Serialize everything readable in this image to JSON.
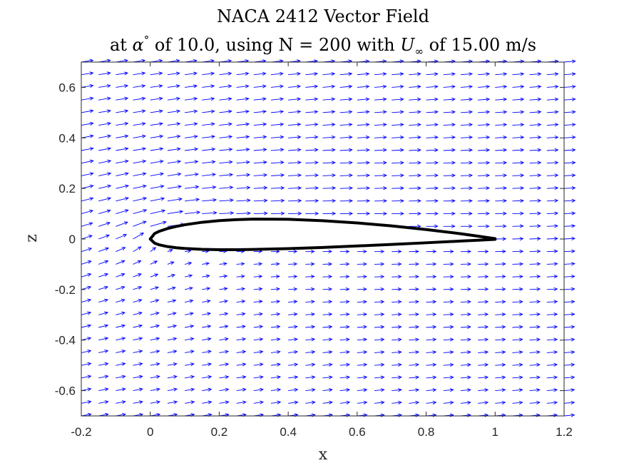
{
  "chart_data": {
    "type": "quiver",
    "title": "NACA 2412 Vector Field",
    "subtitle": {
      "prefix": "at ",
      "alpha_symbol": "α",
      "degree_sup": "°",
      "after_alpha": " of 10.0, using N = 200 with ",
      "u_symbol": "U",
      "u_sub": "∞",
      "suffix": " of 15.00 m/s"
    },
    "xlabel": "x",
    "ylabel": "z",
    "xlim": [
      -0.2,
      1.2
    ],
    "ylim": [
      -0.7,
      0.7
    ],
    "xticks": [
      -0.2,
      0,
      0.2,
      0.4,
      0.6,
      0.8,
      1,
      1.2
    ],
    "xtick_labels": [
      "-0.2",
      "0",
      "0.2",
      "0.4",
      "0.6",
      "0.8",
      "1",
      "1.2"
    ],
    "yticks": [
      -0.6,
      -0.4,
      -0.2,
      0,
      0.2,
      0.4,
      0.6
    ],
    "ytick_labels": [
      "-0.6",
      "-0.4",
      "-0.2",
      "0",
      "0.2",
      "0.4",
      "0.6"
    ],
    "grid": false,
    "vector_color": "#0000ff",
    "airfoil_color": "#000000",
    "parameters": {
      "airfoil": "NACA 2412",
      "alpha_deg": 10.0,
      "panels_N": 200,
      "U_inf_m_s": 15.0
    },
    "vector_grid": {
      "x_start": -0.2,
      "x_step": 0.05,
      "x_count": 29,
      "z_start": -0.7,
      "z_step": 0.05,
      "z_count": 29
    },
    "airfoil_upper": [
      [
        0,
        0
      ],
      [
        0.0125,
        0.0215
      ],
      [
        0.025,
        0.0299
      ],
      [
        0.05,
        0.0413
      ],
      [
        0.075,
        0.0496
      ],
      [
        0.1,
        0.0563
      ],
      [
        0.15,
        0.0661
      ],
      [
        0.2,
        0.0726
      ],
      [
        0.25,
        0.0767
      ],
      [
        0.3,
        0.0788
      ],
      [
        0.4,
        0.078
      ],
      [
        0.5,
        0.0724
      ],
      [
        0.6,
        0.0636
      ],
      [
        0.7,
        0.0518
      ],
      [
        0.8,
        0.0375
      ],
      [
        0.9,
        0.0208
      ],
      [
        0.95,
        0.0114
      ],
      [
        1.0,
        0.0013
      ]
    ],
    "airfoil_lower": [
      [
        0,
        0
      ],
      [
        0.0125,
        -0.0165
      ],
      [
        0.025,
        -0.0227
      ],
      [
        0.05,
        -0.0301
      ],
      [
        0.075,
        -0.0346
      ],
      [
        0.1,
        -0.0375
      ],
      [
        0.15,
        -0.041
      ],
      [
        0.2,
        -0.0423
      ],
      [
        0.25,
        -0.0422
      ],
      [
        0.3,
        -0.0412
      ],
      [
        0.4,
        -0.038
      ],
      [
        0.5,
        -0.0334
      ],
      [
        0.6,
        -0.0276
      ],
      [
        0.7,
        -0.0214
      ],
      [
        0.8,
        -0.015
      ],
      [
        0.9,
        -0.0082
      ],
      [
        0.95,
        -0.0048
      ],
      [
        1.0,
        -0.0013
      ]
    ]
  }
}
